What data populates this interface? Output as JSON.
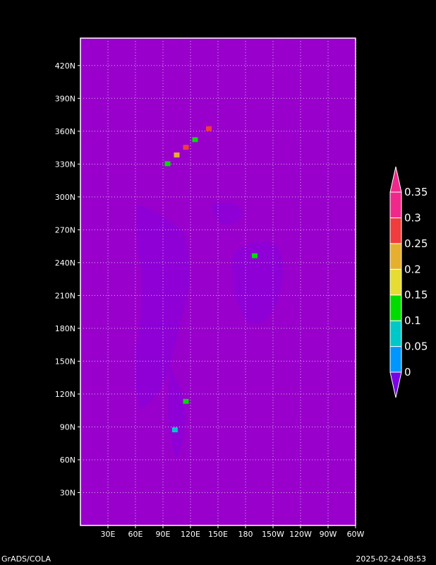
{
  "chart_data": {
    "type": "heatmap",
    "title": "",
    "xlabel": "",
    "ylabel": "",
    "x_tick_labels": [
      "30E",
      "60E",
      "90E",
      "120E",
      "150E",
      "180",
      "150W",
      "120W",
      "90W",
      "60W"
    ],
    "y_tick_labels": [
      "30N",
      "60N",
      "90N",
      "120N",
      "150N",
      "180N",
      "210N",
      "240N",
      "270N",
      "300N",
      "330N",
      "360N",
      "390N",
      "420N"
    ],
    "grid": true,
    "background_color": "#9900cc",
    "colorbar": {
      "placement": "right",
      "levels": [
        "0",
        "0.05",
        "0.1",
        "0.15",
        "0.2",
        "0.25",
        "0.3",
        "0.35"
      ],
      "colors": [
        "#7a00e6",
        "#0096ff",
        "#00c8c8",
        "#00dc00",
        "#e6dc32",
        "#e6af2d",
        "#f03c3c",
        "#f0288c",
        "#a000c8"
      ]
    },
    "highlight_cells": [
      {
        "x": 95,
        "y": 330,
        "value": 0.15
      },
      {
        "x": 105,
        "y": 338,
        "value": 0.2
      },
      {
        "x": 115,
        "y": 345,
        "value": 0.3
      },
      {
        "x": 125,
        "y": 352,
        "value": 0.15
      },
      {
        "x": 140,
        "y": 362,
        "value": 0.25
      },
      {
        "x": 190,
        "y": 246,
        "value": 0.1
      },
      {
        "x": 115,
        "y": 113,
        "value": 0.1
      },
      {
        "x": 103,
        "y": 87,
        "value": 0.05
      }
    ]
  },
  "footer": {
    "left": "GrADS/COLA",
    "right": "2025-02-24-08:53"
  }
}
